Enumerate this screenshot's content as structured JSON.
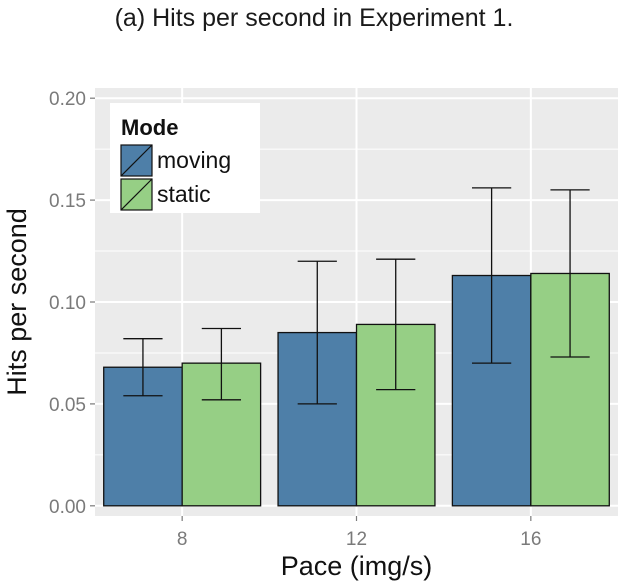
{
  "caption": "(a) Hits per second in Experiment 1.",
  "chart_data": {
    "type": "bar",
    "title": "",
    "xlabel": "Pace (img/s)",
    "ylabel": "Hits per second",
    "categories": [
      "8",
      "12",
      "16"
    ],
    "ylim": [
      -0.005,
      0.205
    ],
    "yticks": [
      "0.00",
      "0.05",
      "0.10",
      "0.15",
      "0.20"
    ],
    "grid": true,
    "legend": {
      "title": "Mode",
      "position": "top-left"
    },
    "series": [
      {
        "name": "moving",
        "color": "#4E7FA8",
        "values": [
          0.068,
          0.085,
          0.113
        ],
        "error_low": [
          0.054,
          0.05,
          0.07
        ],
        "error_high": [
          0.082,
          0.12,
          0.156
        ]
      },
      {
        "name": "static",
        "color": "#96CF85",
        "values": [
          0.07,
          0.089,
          0.114
        ],
        "error_low": [
          0.052,
          0.057,
          0.073
        ],
        "error_high": [
          0.087,
          0.121,
          0.155
        ]
      }
    ],
    "panel_background": "#EBEBEB",
    "gridline_color": "#FFFFFF"
  }
}
